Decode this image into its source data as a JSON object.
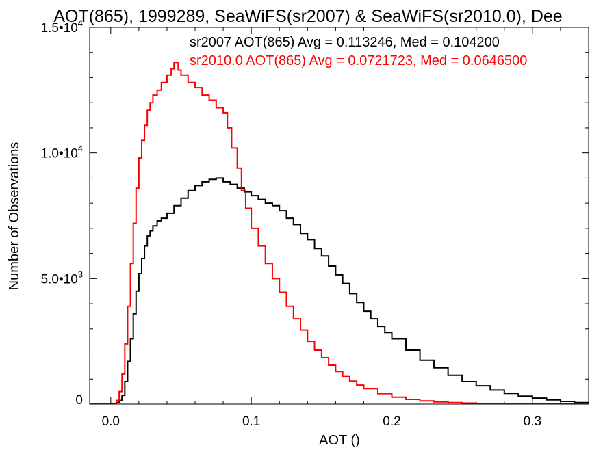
{
  "chart_data": {
    "type": "line",
    "title": "AOT(865), 1999289, SeaWiFS(sr2007) & SeaWiFS(sr2010.0), Dee",
    "xlabel": "AOT ()",
    "ylabel": "Number of Observations",
    "xlim": [
      -0.015,
      0.34
    ],
    "ylim": [
      0,
      15000
    ],
    "x_ticks": [
      0.0,
      0.1,
      0.2,
      0.3
    ],
    "x_tick_labels": [
      "0.0",
      "0.1",
      "0.2",
      "0.3"
    ],
    "y_ticks": [
      0,
      5000,
      10000,
      15000
    ],
    "y_tick_labels": [
      {
        "mantissa": "0",
        "exp": ""
      },
      {
        "mantissa": "5.0•10",
        "exp": "3"
      },
      {
        "mantissa": "1.0•10",
        "exp": "4"
      },
      {
        "mantissa": "1.5•10",
        "exp": "4"
      }
    ],
    "grid": false,
    "legend_position": "top-right",
    "step_style": "histogram",
    "series": [
      {
        "name": "sr2007",
        "color": "#000000",
        "annotation": "sr2007 AOT(865) Avg = 0.113246, Med = 0.104200",
        "x": [
          -0.015,
          0.0,
          0.004,
          0.006,
          0.008,
          0.01,
          0.012,
          0.014,
          0.016,
          0.018,
          0.02,
          0.022,
          0.024,
          0.026,
          0.028,
          0.03,
          0.033,
          0.036,
          0.04,
          0.045,
          0.05,
          0.055,
          0.06,
          0.065,
          0.07,
          0.075,
          0.08,
          0.085,
          0.09,
          0.095,
          0.1,
          0.105,
          0.11,
          0.115,
          0.12,
          0.125,
          0.13,
          0.135,
          0.14,
          0.145,
          0.15,
          0.155,
          0.16,
          0.165,
          0.17,
          0.175,
          0.18,
          0.185,
          0.19,
          0.195,
          0.2,
          0.21,
          0.22,
          0.23,
          0.24,
          0.25,
          0.26,
          0.27,
          0.28,
          0.29,
          0.3,
          0.31,
          0.32,
          0.33,
          0.34
        ],
        "y": [
          0,
          0,
          60,
          150,
          350,
          900,
          1700,
          2600,
          3600,
          4500,
          5200,
          5800,
          6300,
          6700,
          6900,
          7100,
          7300,
          7400,
          7600,
          7900,
          8200,
          8500,
          8700,
          8850,
          8950,
          9000,
          8850,
          8750,
          8600,
          8450,
          8300,
          8150,
          8000,
          7900,
          7700,
          7400,
          7150,
          6800,
          6550,
          6200,
          5900,
          5500,
          5150,
          4800,
          4400,
          4050,
          3700,
          3400,
          3100,
          2850,
          2600,
          2150,
          1750,
          1450,
          1150,
          900,
          730,
          560,
          430,
          320,
          240,
          170,
          110,
          60,
          30
        ]
      },
      {
        "name": "sr2010.0",
        "color": "#ff0000",
        "annotation": "sr2010.0 AOT(865) Avg = 0.0721723, Med = 0.0646500",
        "x": [
          -0.015,
          -0.005,
          0.0,
          0.004,
          0.006,
          0.008,
          0.01,
          0.012,
          0.014,
          0.016,
          0.018,
          0.02,
          0.022,
          0.024,
          0.026,
          0.028,
          0.03,
          0.033,
          0.036,
          0.04,
          0.043,
          0.045,
          0.048,
          0.05,
          0.055,
          0.06,
          0.065,
          0.07,
          0.075,
          0.08,
          0.083,
          0.086,
          0.09,
          0.093,
          0.096,
          0.1,
          0.105,
          0.11,
          0.115,
          0.12,
          0.125,
          0.13,
          0.135,
          0.14,
          0.145,
          0.15,
          0.155,
          0.16,
          0.165,
          0.17,
          0.175,
          0.18,
          0.19,
          0.2,
          0.21,
          0.22,
          0.23,
          0.24,
          0.25,
          0.26,
          0.27,
          0.28,
          0.29,
          0.3,
          0.32,
          0.34
        ],
        "y": [
          0,
          0,
          30,
          150,
          500,
          1200,
          2400,
          3900,
          5600,
          7200,
          8600,
          9800,
          10500,
          11100,
          11700,
          12000,
          12300,
          12500,
          12800,
          13100,
          13350,
          13600,
          13300,
          13100,
          12800,
          12600,
          12300,
          12100,
          11800,
          11600,
          11000,
          10200,
          9400,
          8500,
          7800,
          7000,
          6300,
          5600,
          5000,
          4450,
          3900,
          3400,
          2950,
          2500,
          2150,
          1850,
          1550,
          1300,
          1100,
          920,
          760,
          620,
          420,
          280,
          190,
          130,
          90,
          60,
          40,
          25,
          15,
          10,
          5,
          3,
          1,
          0
        ]
      }
    ]
  }
}
